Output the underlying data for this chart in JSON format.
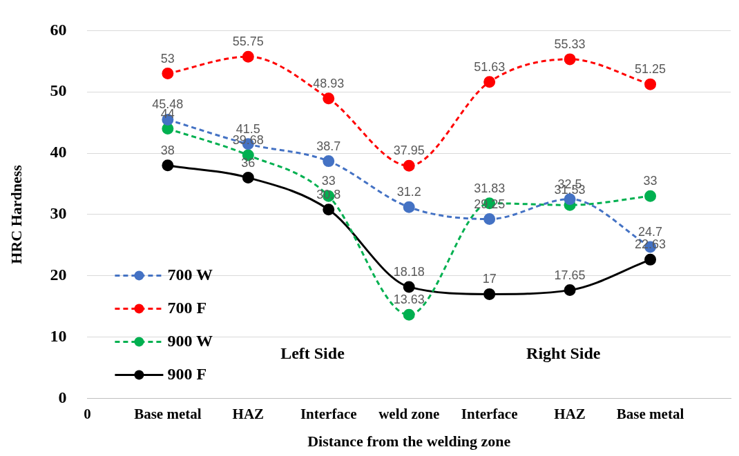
{
  "chart_data": {
    "type": "line",
    "xlabel": "Distance from the welding zone",
    "ylabel": "HRC Hardness",
    "categories": [
      "0",
      "Base metal",
      "HAZ",
      "Interface",
      "weld zone",
      "Interface",
      "HAZ",
      "Base metal",
      null
    ],
    "series": [
      {
        "name": "700 W",
        "color": "#4472c4",
        "line_style": "dashed",
        "values": [
          null,
          45.48,
          41.5,
          38.7,
          31.2,
          29.25,
          32.5,
          24.7,
          null
        ]
      },
      {
        "name": "700 F",
        "color": "#ff0000",
        "line_style": "dashed",
        "values": [
          null,
          53,
          55.75,
          48.93,
          37.95,
          51.63,
          55.33,
          51.25,
          null
        ]
      },
      {
        "name": "900 W",
        "color": "#00b050",
        "line_style": "dashed",
        "values": [
          null,
          44,
          39.68,
          33,
          13.63,
          31.83,
          31.53,
          33,
          null
        ]
      },
      {
        "name": "900 F",
        "color": "#000000",
        "line_style": "solid",
        "values": [
          null,
          38,
          36,
          30.8,
          18.18,
          17,
          17.65,
          22.63,
          null
        ]
      }
    ],
    "ylim": [
      0,
      60
    ],
    "yticks": [
      0,
      10,
      20,
      30,
      40,
      50,
      60
    ],
    "grid": "y",
    "legend": "bottom left",
    "marker": "circle",
    "data_labels": true,
    "annotations": [
      "Left Side",
      "Right Side"
    ]
  }
}
